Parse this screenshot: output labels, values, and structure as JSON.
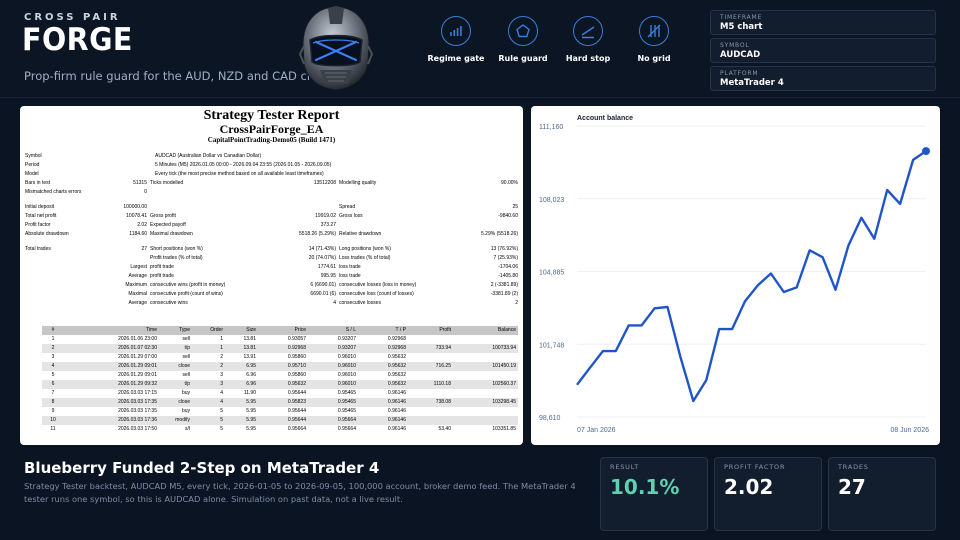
{
  "header": {
    "eyebrow": "CROSS PAIR",
    "brand": "FORGE",
    "tagline": "Prop-firm rule guard for the AUD, NZD and CAD crosses",
    "features": [
      {
        "label": "Regime gate",
        "icon": "bars-icon"
      },
      {
        "label": "Rule guard",
        "icon": "pentagon-icon"
      },
      {
        "label": "Hard stop",
        "icon": "stop-line-icon"
      },
      {
        "label": "No grid",
        "icon": "no-grid-icon"
      }
    ],
    "meta": [
      {
        "key": "TIMEFRAME",
        "value": "M5 chart"
      },
      {
        "key": "SYMBOL",
        "value": "AUDCAD"
      },
      {
        "key": "PLATFORM",
        "value": "MetaTrader 4"
      }
    ],
    "accent": "#3b7dd8"
  },
  "report": {
    "title": "Strategy Tester Report",
    "ea": "CrossPairForge_EA",
    "broker": "CapitalPointTrading-Demo05 (Build 1471)",
    "info": [
      {
        "label": "Symbol",
        "value": "AUDCAD (Australian Dollar vs Canadian Dollar)"
      },
      {
        "label": "Period",
        "value": "5 Minutes (M5) 2026.01.05 00:00 - 2026.09.04 23:55 (2026.01.05 - 2026.09.05)"
      },
      {
        "label": "Model",
        "value": "Every tick (the most precise method based on all available least timeframes)"
      }
    ],
    "bars": {
      "l1": "Bars in test",
      "v1": "51315",
      "l2": "Ticks modelled",
      "v2": "13512208",
      "l3": "Modelling quality",
      "v3": "90.00%"
    },
    "mismatch": {
      "label": "Mismatched charts errors",
      "value": "0"
    },
    "deposit": {
      "l1": "Initial deposit",
      "v1": "100000.00",
      "l2": "Spread",
      "v2": "25"
    },
    "net": {
      "l1": "Total net profit",
      "v1": "10078.41",
      "l2": "Gross profit",
      "v2": "19919.02",
      "l3": "Gross loss",
      "v3": "-9840.60"
    },
    "pf": {
      "l1": "Profit factor",
      "v1": "2.02",
      "l2": "Expected payoff",
      "v2": "373.27"
    },
    "dd": {
      "l1": "Absolute drawdown",
      "v1": "1184.60",
      "l2": "Maximal drawdown",
      "v2": "5518.26 (5.29%)",
      "l3": "Relative drawdown",
      "v3": "5.29% (5518.26)"
    },
    "trades": {
      "l1": "Total trades",
      "v1": "27",
      "l2": "Short positions (won %)",
      "v2": "14 (71.43%)",
      "l3": "Long positions (won %)",
      "v3": "13 (76.92%)"
    },
    "pt": {
      "l2": "Profit trades (% of total)",
      "v2": "20 (74.07%)",
      "l3": "Loss trades (% of total)",
      "v3": "7 (25.93%)"
    },
    "largest": {
      "l1": "Largest",
      "l2": "profit trade",
      "v2": "1774.61",
      "l3": "loss trade",
      "v3": "-1704.06"
    },
    "average": {
      "l1": "Average",
      "l2": "profit trade",
      "v2": "995.95",
      "l3": "loss trade",
      "v3": "-1405.80"
    },
    "maximum": {
      "l1": "Maximum",
      "l2": "consecutive wins (profit in money)",
      "v2": "6 (6690.01)",
      "l3": "consecutive losses (loss in money)",
      "v3": "2 (-3381.89)"
    },
    "maximal": {
      "l1": "Maximal",
      "l2": "consecutive profit (count of wins)",
      "v2": "6690.01 (6)",
      "l3": "consecutive loss (count of losses)",
      "v3": "-3381.89 (2)"
    },
    "averagec": {
      "l1": "Average",
      "l2": "consecutive wins",
      "v2": "4",
      "l3": "consecutive losses",
      "v3": "2"
    },
    "columns": [
      "#",
      "Time",
      "Type",
      "Order",
      "Size",
      "Price",
      "S / L",
      "T / P",
      "Profit",
      "Balance"
    ],
    "rows": [
      [
        "1",
        "2026.01.06 23:00",
        "sell",
        "1",
        "13.81",
        "0.93057",
        "0.93207",
        "0.92968",
        "",
        ""
      ],
      [
        "2",
        "2026.01.07 02:30",
        "t/p",
        "1",
        "13.81",
        "0.92968",
        "0.93207",
        "0.92968",
        "733.94",
        "100733.94"
      ],
      [
        "3",
        "2026.01.29 07:00",
        "sell",
        "2",
        "13.91",
        "0.95860",
        "0.96010",
        "0.95632",
        "",
        ""
      ],
      [
        "4",
        "2026.01.29 09:01",
        "close",
        "2",
        "6.95",
        "0.95710",
        "0.96010",
        "0.95632",
        "716.25",
        "101450.19"
      ],
      [
        "5",
        "2026.01.29 09:01",
        "sell",
        "3",
        "6.96",
        "0.95860",
        "0.96010",
        "0.95632",
        "",
        ""
      ],
      [
        "6",
        "2026.01.29 09:32",
        "t/p",
        "3",
        "6.96",
        "0.95632",
        "0.96010",
        "0.95632",
        "1110.18",
        "102560.37"
      ],
      [
        "7",
        "2026.03.03 17:15",
        "buy",
        "4",
        "11.90",
        "0.95644",
        "0.95465",
        "0.96146",
        "",
        ""
      ],
      [
        "8",
        "2026.03.03 17:35",
        "close",
        "4",
        "5.95",
        "0.95823",
        "0.95465",
        "0.96146",
        "738.08",
        "103298.45"
      ],
      [
        "9",
        "2026.03.03 17:35",
        "buy",
        "5",
        "5.95",
        "0.95644",
        "0.95465",
        "0.96146",
        "",
        ""
      ],
      [
        "10",
        "2026.03.03 17:36",
        "modify",
        "5",
        "5.95",
        "0.95644",
        "0.95664",
        "0.96146",
        "",
        ""
      ],
      [
        "11",
        "2026.03.03 17:50",
        "s/l",
        "5",
        "5.95",
        "0.95664",
        "0.95664",
        "0.96146",
        "53.40",
        "103351.85"
      ]
    ]
  },
  "chart_data": {
    "type": "line",
    "title": "Account balance",
    "ylim": [
      98610,
      111160
    ],
    "yticks": [
      "111,160",
      "108,023",
      "104,885",
      "101,748",
      "98,610"
    ],
    "xticks": [
      "07 Jan 2026",
      "08 Jun 2026"
    ],
    "series": [
      {
        "color": "#1f55c8",
        "values": [
          100000,
          100733.94,
          101450.19,
          101450.19,
          102560.37,
          102560.37,
          103298.45,
          103351.85,
          101200,
          99300,
          100200,
          102400,
          102400,
          103600,
          104300,
          104800,
          104000,
          104200,
          105800,
          105500,
          104100,
          106000,
          107200,
          106300,
          108400,
          107800,
          109700,
          110078.41
        ]
      }
    ]
  },
  "footer": {
    "title": "Blueberry Funded 2-Step on MetaTrader 4",
    "desc": "Strategy Tester backtest, AUDCAD M5, every tick, 2026-01-05 to 2026-09-05, 100,000 account, broker demo feed. The MetaTrader 4 tester runs one symbol, so this is AUDCAD alone. Simulation on past data, not a live result.",
    "kpis": [
      {
        "key": "RESULT",
        "value": "10.1%",
        "color": "#5fd0b0"
      },
      {
        "key": "PROFIT FACTOR",
        "value": "2.02",
        "color": "#ffffff"
      },
      {
        "key": "TRADES",
        "value": "27",
        "color": "#ffffff"
      }
    ]
  }
}
